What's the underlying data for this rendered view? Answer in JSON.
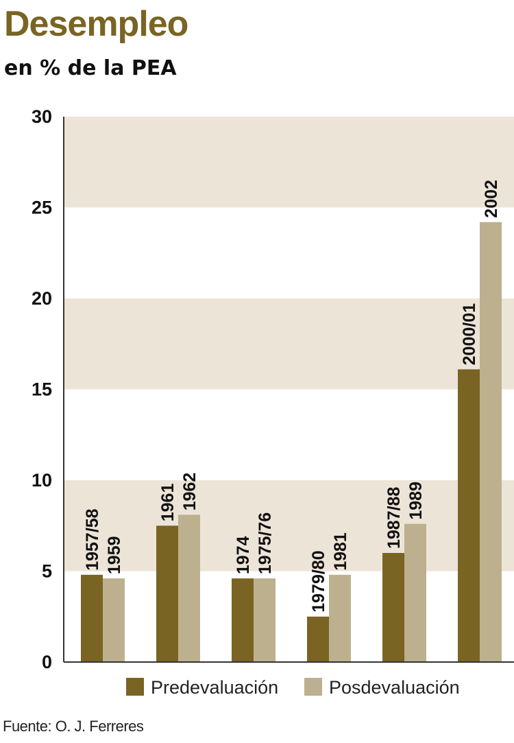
{
  "title": "Desempleo",
  "subtitle": "en % de la PEA",
  "source": "Fuente: O. J. Ferreres",
  "colors": {
    "title": "#7a6424",
    "predevaluacion": "#7a6424",
    "posdevaluacion": "#bcb08e",
    "band": "#ede4d8"
  },
  "chart_data": {
    "type": "bar",
    "title": "Desempleo",
    "subtitle": "en % de la PEA",
    "xlabel": "",
    "ylabel": "",
    "ylim": [
      0,
      30
    ],
    "yticks": [
      "0",
      "5",
      "10",
      "15",
      "20",
      "25",
      "30"
    ],
    "grid": "alternating horizontal bands",
    "legend_position": "bottom",
    "series": [
      {
        "name": "Predevaluación",
        "values": [
          4.8,
          7.5,
          4.6,
          2.5,
          6.0,
          16.1
        ],
        "labels": [
          "1957/58",
          "1961",
          "1974",
          "1979/80",
          "1987/88",
          "2000/01"
        ]
      },
      {
        "name": "Posdevaluación",
        "values": [
          4.6,
          8.1,
          4.6,
          4.8,
          7.6,
          24.2
        ],
        "labels": [
          "1959",
          "1962",
          "1975/76",
          "1981",
          "1989",
          "2002"
        ]
      }
    ]
  }
}
